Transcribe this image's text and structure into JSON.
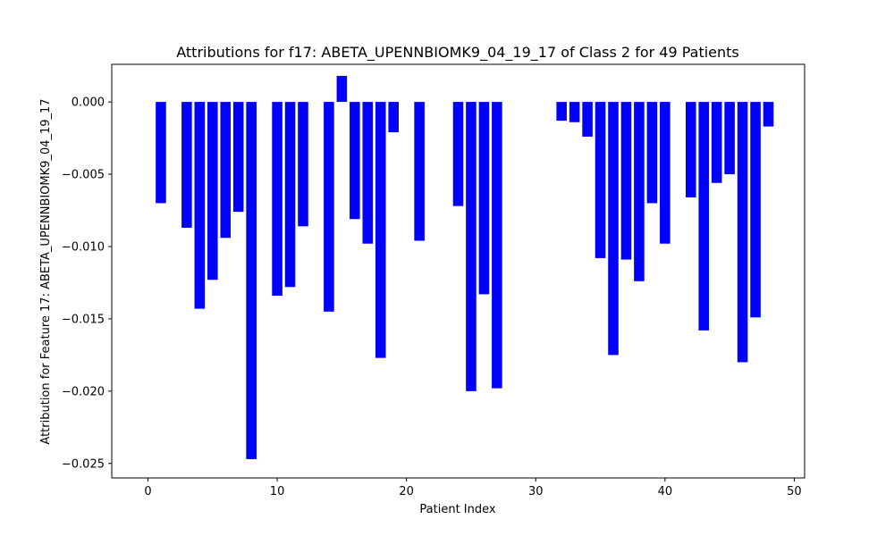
{
  "chart_data": {
    "type": "bar",
    "title": "Attributions for f17: ABETA_UPENNBIOMK9_04_19_17 of Class 2 for 49 Patients",
    "xlabel": "Patient Index",
    "ylabel": "Attribution for Feature 17: ABETA_UPENNBIOMK9_04_19_17",
    "xlim": [
      -2.8,
      50.8
    ],
    "ylim": [
      -0.026,
      0.0026
    ],
    "xticks": [
      0,
      10,
      20,
      30,
      40,
      50
    ],
    "yticks": [
      0.0,
      -0.005,
      -0.01,
      -0.015,
      -0.02,
      -0.025
    ],
    "ytick_labels": [
      "0.000",
      "−0.005",
      "−0.010",
      "−0.015",
      "−0.020",
      "−0.025"
    ],
    "bar_color": "#0000ff",
    "grid": false,
    "x": [
      0,
      1,
      2,
      3,
      4,
      5,
      6,
      7,
      8,
      9,
      10,
      11,
      12,
      13,
      14,
      15,
      16,
      17,
      18,
      19,
      20,
      21,
      22,
      23,
      24,
      25,
      26,
      27,
      28,
      29,
      30,
      31,
      32,
      33,
      34,
      35,
      36,
      37,
      38,
      39,
      40,
      41,
      42,
      43,
      44,
      45,
      46,
      47,
      48
    ],
    "values": [
      0,
      -0.007,
      0,
      -0.0087,
      -0.0143,
      -0.0123,
      -0.0094,
      -0.0076,
      -0.0247,
      0,
      -0.0134,
      -0.0128,
      -0.0086,
      0,
      -0.0145,
      0.0018,
      -0.0081,
      -0.0098,
      -0.0177,
      -0.0021,
      0,
      -0.0096,
      0,
      0,
      -0.0072,
      -0.02,
      -0.0133,
      -0.0198,
      0,
      0,
      0,
      0,
      -0.0013,
      -0.0014,
      -0.0024,
      -0.0108,
      -0.0175,
      -0.0109,
      -0.0124,
      -0.007,
      -0.0098,
      0,
      -0.0066,
      -0.0158,
      -0.0056,
      -0.005,
      -0.018,
      -0.0149,
      -0.0017
    ]
  }
}
